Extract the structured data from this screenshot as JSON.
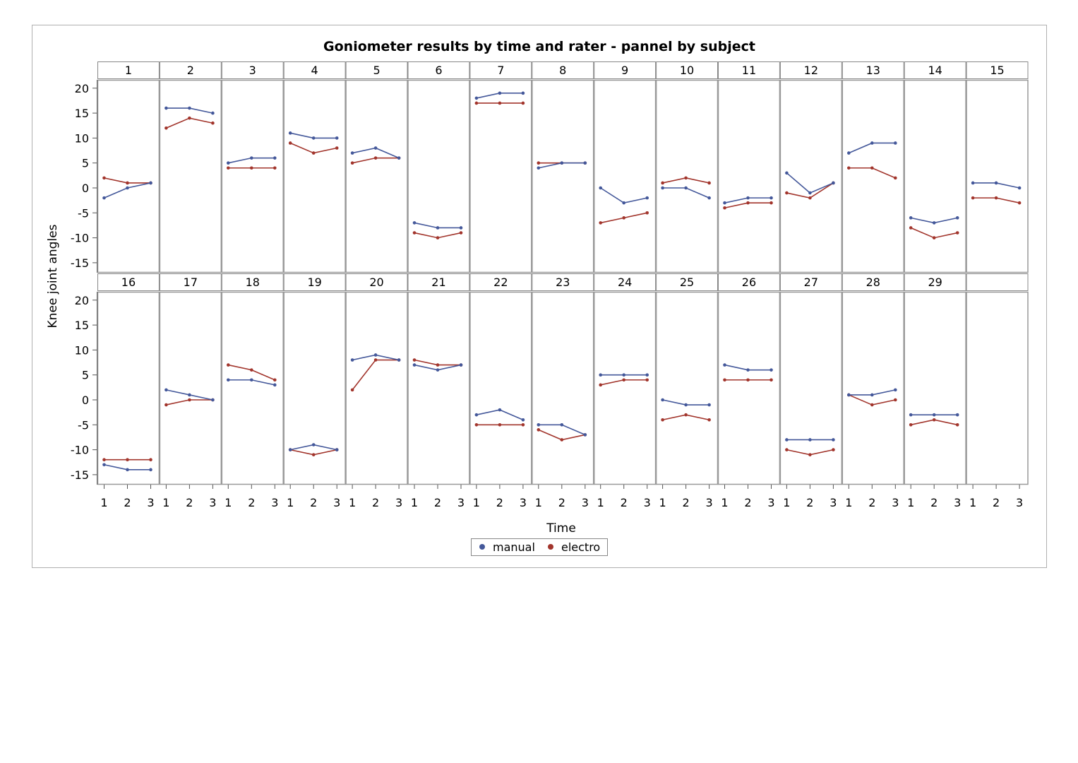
{
  "chart_data": {
    "type": "line",
    "title": "Goniometer results by time and rater - pannel by subject",
    "xlabel": "Time",
    "ylabel": "Knee joint angles",
    "ylim": [
      -17,
      22
    ],
    "yticks": [
      -15,
      -10,
      -5,
      0,
      5,
      10,
      15,
      20
    ],
    "x": [
      1,
      2,
      3
    ],
    "grid": false,
    "legend_placement": "bottom-center",
    "colors": {
      "manual": "#44589a",
      "electro": "#a2352c"
    },
    "series_names": [
      "manual",
      "electro"
    ],
    "panels": [
      {
        "label": "1",
        "manual": [
          -2,
          0,
          1
        ],
        "electro": [
          2,
          1,
          1
        ]
      },
      {
        "label": "2",
        "manual": [
          16,
          16,
          15
        ],
        "electro": [
          12,
          14,
          13
        ]
      },
      {
        "label": "3",
        "manual": [
          5,
          6,
          6
        ],
        "electro": [
          4,
          4,
          4
        ]
      },
      {
        "label": "4",
        "manual": [
          11,
          10,
          10
        ],
        "electro": [
          9,
          7,
          8
        ]
      },
      {
        "label": "5",
        "manual": [
          7,
          8,
          6
        ],
        "electro": [
          5,
          6,
          6
        ]
      },
      {
        "label": "6",
        "manual": [
          -7,
          -8,
          -8
        ],
        "electro": [
          -9,
          -10,
          -9
        ]
      },
      {
        "label": "7",
        "manual": [
          18,
          19,
          19
        ],
        "electro": [
          17,
          17,
          17
        ]
      },
      {
        "label": "8",
        "manual": [
          4,
          5,
          5
        ],
        "electro": [
          5,
          5,
          5
        ]
      },
      {
        "label": "9",
        "manual": [
          0,
          -3,
          -2
        ],
        "electro": [
          -7,
          -6,
          -5
        ]
      },
      {
        "label": "10",
        "manual": [
          0,
          0,
          -2
        ],
        "electro": [
          1,
          2,
          1
        ]
      },
      {
        "label": "11",
        "manual": [
          -3,
          -2,
          -2
        ],
        "electro": [
          -4,
          -3,
          -3
        ]
      },
      {
        "label": "12",
        "manual": [
          3,
          -1,
          1
        ],
        "electro": [
          -1,
          -2,
          1
        ]
      },
      {
        "label": "13",
        "manual": [
          7,
          9,
          9
        ],
        "electro": [
          4,
          4,
          2
        ]
      },
      {
        "label": "14",
        "manual": [
          -6,
          -7,
          -6
        ],
        "electro": [
          -8,
          -10,
          -9
        ]
      },
      {
        "label": "15",
        "manual": [
          1,
          1,
          0
        ],
        "electro": [
          -2,
          -2,
          -3
        ]
      },
      {
        "label": "16",
        "manual": [
          -13,
          -14,
          -14
        ],
        "electro": [
          -12,
          -12,
          -12
        ]
      },
      {
        "label": "17",
        "manual": [
          2,
          1,
          0
        ],
        "electro": [
          -1,
          0,
          0
        ]
      },
      {
        "label": "18",
        "manual": [
          4,
          4,
          3
        ],
        "electro": [
          7,
          6,
          4
        ]
      },
      {
        "label": "19",
        "manual": [
          -10,
          -9,
          -10
        ],
        "electro": [
          -10,
          -11,
          -10
        ]
      },
      {
        "label": "20",
        "manual": [
          8,
          9,
          8
        ],
        "electro": [
          2,
          8,
          8
        ]
      },
      {
        "label": "21",
        "manual": [
          7,
          6,
          7
        ],
        "electro": [
          8,
          7,
          7
        ]
      },
      {
        "label": "22",
        "manual": [
          -3,
          -2,
          -4
        ],
        "electro": [
          -5,
          -5,
          -5
        ]
      },
      {
        "label": "23",
        "manual": [
          -5,
          -5,
          -7
        ],
        "electro": [
          -6,
          -8,
          -7
        ]
      },
      {
        "label": "24",
        "manual": [
          5,
          5,
          5
        ],
        "electro": [
          3,
          4,
          4
        ]
      },
      {
        "label": "25",
        "manual": [
          0,
          -1,
          -1
        ],
        "electro": [
          -4,
          -3,
          -4
        ]
      },
      {
        "label": "26",
        "manual": [
          7,
          6,
          6
        ],
        "electro": [
          4,
          4,
          4
        ]
      },
      {
        "label": "27",
        "manual": [
          -8,
          -8,
          -8
        ],
        "electro": [
          -10,
          -11,
          -10
        ]
      },
      {
        "label": "28",
        "manual": [
          1,
          1,
          2
        ],
        "electro": [
          1,
          -1,
          0
        ]
      },
      {
        "label": "29",
        "manual": [
          -3,
          -3,
          -3
        ],
        "electro": [
          -5,
          -4,
          -5
        ]
      }
    ]
  }
}
